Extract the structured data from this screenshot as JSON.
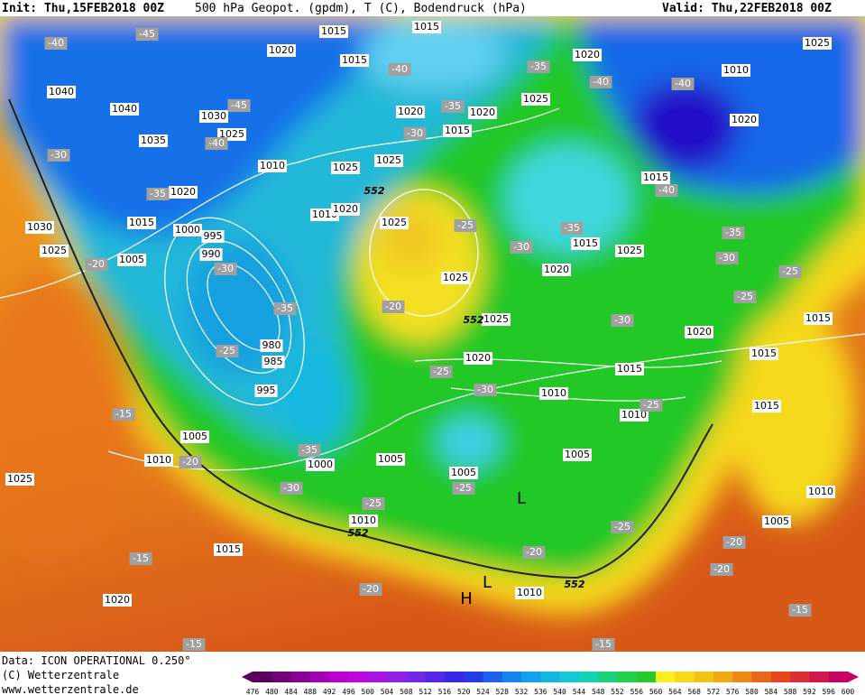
{
  "header": {
    "init": "Init: Thu,15FEB2018 00Z",
    "title": "500 hPa Geopot. (gpdm), T (C), Bodendruck (hPa)",
    "valid": "Valid: Thu,22FEB2018 00Z"
  },
  "footer": {
    "data": "Data: ICON OPERATIONAL 0.250°",
    "copyright": "(C) Wetterzentrale",
    "url": "www.wetterzentrale.de"
  },
  "colorbar": {
    "ticks": [
      476,
      480,
      484,
      488,
      492,
      496,
      500,
      504,
      508,
      512,
      516,
      520,
      524,
      528,
      532,
      536,
      540,
      544,
      548,
      552,
      556,
      560,
      564,
      568,
      572,
      576,
      580,
      584,
      588,
      592,
      596,
      600
    ]
  },
  "map_labels": {
    "pressure": [
      "1015",
      "1015",
      "1020",
      "1015",
      "1040",
      "1040",
      "1030",
      "1025",
      "1035",
      "1010",
      "1020",
      "1025",
      "1025",
      "1015",
      "1000",
      "995",
      "990",
      "1030",
      "1025",
      "1005",
      "1020",
      "1015",
      "1020",
      "1025",
      "1020",
      "1025",
      "1010",
      "1020",
      "1015",
      "1025",
      "1010",
      "1020",
      "1025",
      "1025",
      "1020",
      "1015",
      "1020",
      "1025",
      "1020",
      "1015",
      "1010",
      "1010",
      "1015",
      "1015",
      "1015",
      "980",
      "985",
      "995",
      "1005",
      "1010",
      "1000",
      "1005",
      "1005",
      "1005",
      "1025",
      "1010",
      "1015",
      "1020",
      "1010",
      "1005",
      "1010"
    ],
    "temperature": [
      "-40",
      "-45",
      "-45",
      "-40",
      "-30",
      "-35",
      "-30",
      "-35",
      "-25",
      "-20",
      "-40",
      "-35",
      "-40",
      "-40",
      "-35",
      "-30",
      "-40",
      "-25",
      "-35",
      "-30",
      "-35",
      "-30",
      "-25",
      "-25",
      "-30",
      "-20",
      "-25",
      "-30",
      "-25",
      "-15",
      "-20",
      "-35",
      "-30",
      "-25",
      "-25",
      "-25",
      "-20",
      "-20",
      "-20",
      "-15",
      "-20",
      "-15",
      "-15",
      "-15"
    ],
    "geopotential": [
      "552",
      "552",
      "552",
      "552"
    ],
    "centers": [
      "L",
      "L",
      "H"
    ]
  }
}
